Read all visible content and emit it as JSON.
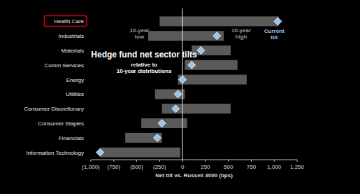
{
  "chart_data": {
    "type": "bar",
    "orientation": "horizontal",
    "title": "Hedge fund net sector tilts",
    "subtitle": "relative to 10-year distributions",
    "x_label": "Net tilt vs. Russell 3000 (bps)",
    "categories": [
      "Health Care",
      "Industrials",
      "Materials",
      "Comm Services",
      "Energy",
      "Utilities",
      "Consumer Discretionary",
      "Consumer Staples",
      "Financials",
      "Information Technology"
    ],
    "series": [
      {
        "name": "10-year low",
        "color": "#5a5a5a",
        "values": [
          -250,
          -375,
          100,
          25,
          -50,
          -300,
          -225,
          -450,
          -625,
          -900
        ]
      },
      {
        "name": "10-year high",
        "color": "#5a5a5a",
        "values": [
          1050,
          450,
          525,
          600,
          700,
          25,
          525,
          50,
          -225,
          -25
        ]
      },
      {
        "name": "Current tilt",
        "type": "scatter",
        "marker": "diamond",
        "color": "#9dc3e6",
        "values": [
          1040,
          375,
          200,
          100,
          0,
          -50,
          -75,
          -225,
          -275,
          -900
        ]
      }
    ],
    "xlim": [
      -1000,
      1250
    ],
    "xticks": [
      {
        "value": -1000,
        "label": "(1,000)"
      },
      {
        "value": -750,
        "label": "(750)"
      },
      {
        "value": -500,
        "label": "(500)"
      },
      {
        "value": -250,
        "label": "(250)"
      },
      0,
      250,
      500,
      750,
      {
        "value": 1000,
        "label": "1,000"
      },
      {
        "value": 1250,
        "label": "1,250"
      }
    ]
  }
}
